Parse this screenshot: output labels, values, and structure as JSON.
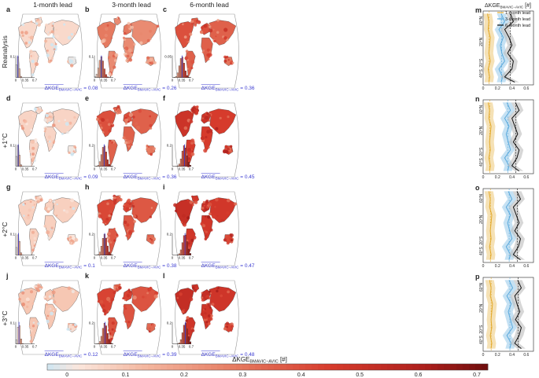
{
  "col_titles": [
    "1-month lead",
    "3-month lead",
    "6-month lead"
  ],
  "row_labels": [
    "Reanalysis",
    "+1°C",
    "+2°C",
    "+3°C"
  ],
  "panel_letters": [
    "a",
    "b",
    "c",
    "d",
    "e",
    "f",
    "g",
    "h",
    "i",
    "j",
    "k",
    "l"
  ],
  "side_letters": [
    "m",
    "n",
    "o",
    "p"
  ],
  "metric_main": "ΔKGE",
  "metric_sub": "BMAVIC−AVIC",
  "mean_suffix": "=",
  "means": [
    "0.08",
    "0.26",
    "0.36",
    "0.09",
    "0.36",
    "0.45",
    "0.1",
    "0.38",
    "0.47",
    "0.12",
    "0.39",
    "0.48"
  ],
  "hist_ticks_x": [
    "0",
    "0.35",
    "0.7"
  ],
  "hist_ticks_y": [
    "0.1",
    "0.1",
    "0.05",
    "0.1",
    "0.2",
    "0.2",
    "0.1",
    "0.2",
    "0.2",
    "0.1",
    "0.2",
    "0.2"
  ],
  "side_header": "ΔKGE",
  "side_header_sub": "BMAVIC−AVIC",
  "side_header_unit": "[#]",
  "legend_items": [
    "1-month lead",
    "3-month lead",
    "6-month lead"
  ],
  "lat_ticks": [
    "60°N",
    "20°N",
    "20°S",
    "40°S"
  ],
  "side_x_ticks": [
    "0",
    "0.2",
    "0.4",
    "0.6"
  ],
  "colorbar_label": "ΔKGE",
  "colorbar_label_sub": "BMAVIC−AVIC",
  "colorbar_label_unit": "[#]",
  "colorbar_ticks": [
    "0",
    "0.1",
    "0.2",
    "0.3",
    "0.4",
    "0.5",
    "0.6",
    "0.7"
  ],
  "colors": {
    "map_lo": "#f6d9cc",
    "map_mid": "#dc4a37",
    "map_hi": "#8e1414",
    "mean_text": "#3b3bd1",
    "lead1": "#e3a92a",
    "lead3": "#5aa9dc",
    "lead6": "#111111",
    "ocean_ring": "#9a9a9a"
  },
  "chart_data": {
    "type": "heatmap",
    "value_range": [
      0,
      0.7
    ],
    "panel_means": [
      {
        "panel": "a",
        "row": "Reanalysis",
        "lead": "1-month lead",
        "mean": 0.08
      },
      {
        "panel": "b",
        "row": "Reanalysis",
        "lead": "3-month lead",
        "mean": 0.26
      },
      {
        "panel": "c",
        "row": "Reanalysis",
        "lead": "6-month lead",
        "mean": 0.36
      },
      {
        "panel": "d",
        "row": "+1°C",
        "lead": "1-month lead",
        "mean": 0.09
      },
      {
        "panel": "e",
        "row": "+1°C",
        "lead": "3-month lead",
        "mean": 0.36
      },
      {
        "panel": "f",
        "row": "+1°C",
        "lead": "6-month lead",
        "mean": 0.45
      },
      {
        "panel": "g",
        "row": "+2°C",
        "lead": "1-month lead",
        "mean": 0.1
      },
      {
        "panel": "h",
        "row": "+2°C",
        "lead": "3-month lead",
        "mean": 0.38
      },
      {
        "panel": "i",
        "row": "+2°C",
        "lead": "6-month lead",
        "mean": 0.47
      },
      {
        "panel": "j",
        "row": "+3°C",
        "lead": "1-month lead",
        "mean": 0.12
      },
      {
        "panel": "k",
        "row": "+3°C",
        "lead": "3-month lead",
        "mean": 0.39
      },
      {
        "panel": "l",
        "row": "+3°C",
        "lead": "6-month lead",
        "mean": 0.48
      }
    ],
    "latitude_profiles": {
      "x_range": [
        0,
        0.7
      ],
      "lat_range": [
        -60,
        80
      ],
      "lat": [
        75,
        60,
        45,
        30,
        15,
        0,
        -15,
        -30,
        -45,
        -55
      ],
      "series": [
        {
          "name": "1-month lead",
          "rows": [
            [
              0.06,
              0.08,
              0.07,
              0.1,
              0.09,
              0.08,
              0.1,
              0.07,
              0.09,
              0.08
            ],
            [
              0.07,
              0.09,
              0.08,
              0.11,
              0.1,
              0.09,
              0.1,
              0.08,
              0.1,
              0.09
            ],
            [
              0.08,
              0.1,
              0.09,
              0.12,
              0.11,
              0.1,
              0.11,
              0.09,
              0.11,
              0.1
            ],
            [
              0.09,
              0.11,
              0.1,
              0.13,
              0.12,
              0.11,
              0.12,
              0.1,
              0.12,
              0.11
            ]
          ]
        },
        {
          "name": "3-month lead",
          "rows": [
            [
              0.25,
              0.3,
              0.22,
              0.28,
              0.24,
              0.26,
              0.3,
              0.22,
              0.27,
              0.25
            ],
            [
              0.33,
              0.38,
              0.3,
              0.36,
              0.32,
              0.35,
              0.38,
              0.3,
              0.36,
              0.34
            ],
            [
              0.35,
              0.4,
              0.32,
              0.38,
              0.34,
              0.37,
              0.4,
              0.32,
              0.38,
              0.36
            ],
            [
              0.36,
              0.41,
              0.33,
              0.39,
              0.35,
              0.38,
              0.41,
              0.33,
              0.39,
              0.37
            ]
          ]
        },
        {
          "name": "6-month lead",
          "rows": [
            [
              0.38,
              0.42,
              0.3,
              0.36,
              0.4,
              0.34,
              0.42,
              0.4,
              0.3,
              0.44
            ],
            [
              0.45,
              0.5,
              0.4,
              0.44,
              0.48,
              0.42,
              0.5,
              0.47,
              0.4,
              0.5
            ],
            [
              0.47,
              0.52,
              0.42,
              0.46,
              0.5,
              0.44,
              0.52,
              0.49,
              0.42,
              0.52
            ],
            [
              0.48,
              0.53,
              0.44,
              0.47,
              0.51,
              0.45,
              0.53,
              0.5,
              0.44,
              0.53
            ]
          ]
        }
      ]
    }
  }
}
